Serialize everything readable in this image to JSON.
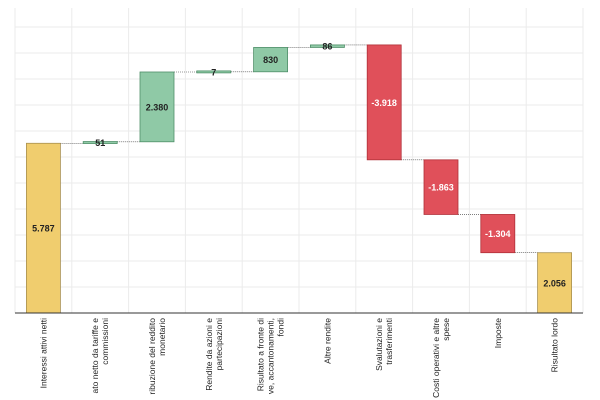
{
  "chart_data": {
    "type": "waterfall",
    "title": "",
    "xlabel": "",
    "ylabel": "",
    "ylim": [
      0,
      10400
    ],
    "grid": true,
    "colors": {
      "total": "#f0cd6e",
      "increase": "#8fc9a6",
      "decrease": "#e0505a",
      "connector": "#333333",
      "total_border": "#a89050",
      "increase_border": "#4f8f69",
      "decrease_border": "#b03038"
    },
    "steps": [
      {
        "category": [
          "Interessi attivi netti"
        ],
        "value": 5787,
        "kind": "total",
        "label": "5.787"
      },
      {
        "category": [
          "ato netto da tariffe e",
          "commissioni"
        ],
        "value": 51,
        "kind": "increase",
        "label": "51"
      },
      {
        "category": [
          "ribuzione del reddito",
          "monetario"
        ],
        "value": 2380,
        "kind": "increase",
        "label": "2.380"
      },
      {
        "category": [
          "Rendite da azioni e",
          "partecipazioni"
        ],
        "value": 7,
        "kind": "increase",
        "label": "7"
      },
      {
        "category": [
          "Risultato a fronte di",
          "ve, accantonamenti,",
          "fondi"
        ],
        "value": 830,
        "kind": "increase",
        "label": "830"
      },
      {
        "category": [
          "Altre rendite"
        ],
        "value": 86,
        "kind": "increase",
        "label": "86"
      },
      {
        "category": [
          "Svalutazioni e",
          "trasferimenti"
        ],
        "value": -3918,
        "kind": "decrease",
        "label": "-3.918"
      },
      {
        "category": [
          "Costi operativi e altre",
          "spese"
        ],
        "value": -1863,
        "kind": "decrease",
        "label": "-1.863"
      },
      {
        "category": [
          "Imposte"
        ],
        "value": -1304,
        "kind": "decrease",
        "label": "-1.304"
      },
      {
        "category": [
          "Risultato lordo"
        ],
        "value": 2056,
        "kind": "total",
        "label": "2.056"
      }
    ]
  }
}
